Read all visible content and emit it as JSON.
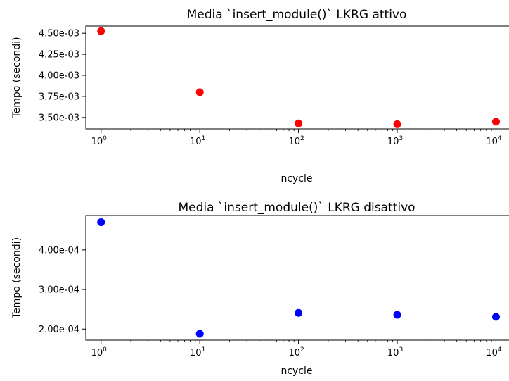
{
  "chart_data": [
    {
      "type": "scatter",
      "title": "Media `insert_module()` LKRG attivo",
      "xlabel": "ncycle",
      "ylabel": "Tempo (secondi)",
      "xscale": "log",
      "xlim": [
        0.7,
        14000
      ],
      "ylim": [
        0.003365,
        0.004585
      ],
      "xticks": [
        {
          "value": 1,
          "base": "10",
          "exp": "0"
        },
        {
          "value": 10,
          "base": "10",
          "exp": "1"
        },
        {
          "value": 100,
          "base": "10",
          "exp": "2"
        },
        {
          "value": 1000,
          "base": "10",
          "exp": "3"
        },
        {
          "value": 10000,
          "base": "10",
          "exp": "4"
        }
      ],
      "yticks": [
        {
          "value": 0.0035,
          "label": "3.50e-03"
        },
        {
          "value": 0.00375,
          "label": "3.75e-03"
        },
        {
          "value": 0.004,
          "label": "4.00e-03"
        },
        {
          "value": 0.00425,
          "label": "4.25e-03"
        },
        {
          "value": 0.0045,
          "label": "4.50e-03"
        }
      ],
      "color": "#ff0000",
      "grid": false,
      "x": [
        1,
        10,
        100,
        1000,
        10000
      ],
      "y": [
        0.004525,
        0.0038,
        0.00343,
        0.00342,
        0.00345
      ]
    },
    {
      "type": "scatter",
      "title": "Media `insert_module()` LKRG disattivo",
      "xlabel": "ncycle",
      "ylabel": "Tempo (secondi)",
      "xscale": "log",
      "xlim": [
        0.7,
        14000
      ],
      "ylim": [
        0.000172,
        0.000487
      ],
      "xticks": [
        {
          "value": 1,
          "base": "10",
          "exp": "0"
        },
        {
          "value": 10,
          "base": "10",
          "exp": "1"
        },
        {
          "value": 100,
          "base": "10",
          "exp": "2"
        },
        {
          "value": 1000,
          "base": "10",
          "exp": "3"
        },
        {
          "value": 10000,
          "base": "10",
          "exp": "4"
        }
      ],
      "yticks": [
        {
          "value": 0.0002,
          "label": "2.00e-04"
        },
        {
          "value": 0.0003,
          "label": "3.00e-04"
        },
        {
          "value": 0.0004,
          "label": "4.00e-04"
        }
      ],
      "color": "#0000ff",
      "grid": false,
      "x": [
        1,
        10,
        100,
        1000,
        10000
      ],
      "y": [
        0.00047,
        0.000188,
        0.000241,
        0.000236,
        0.000231
      ]
    }
  ]
}
